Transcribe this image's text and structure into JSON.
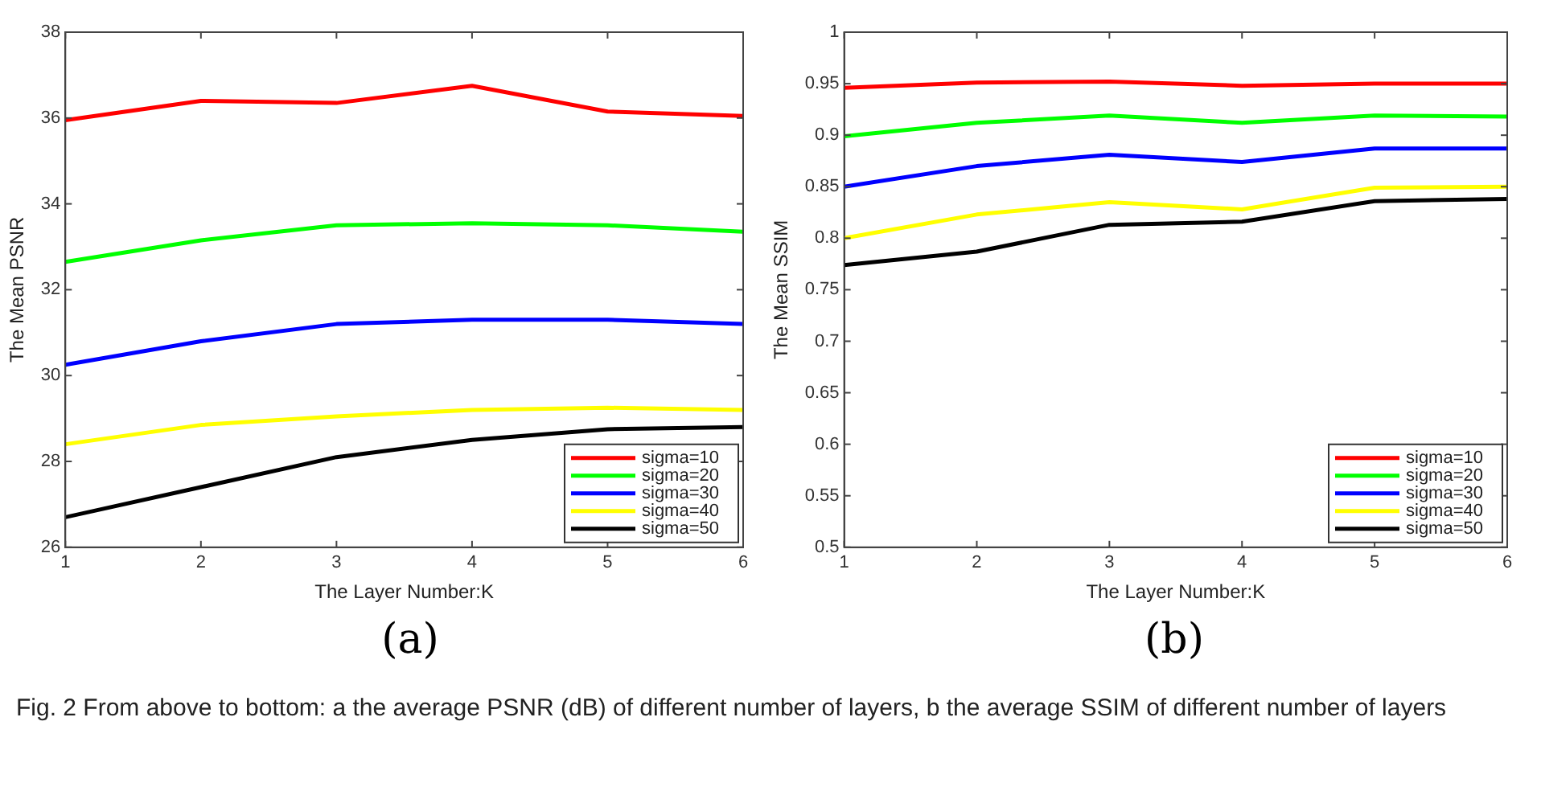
{
  "chart_data": [
    {
      "type": "line",
      "xlabel": "The Layer Number:K",
      "ylabel": "The Mean PSNR",
      "x": [
        1,
        2,
        3,
        4,
        5,
        6
      ],
      "xlim": [
        1,
        6
      ],
      "xticks": [
        1,
        2,
        3,
        4,
        5,
        6
      ],
      "ylim": [
        26,
        38
      ],
      "yticks": [
        26,
        28,
        30,
        32,
        34,
        36,
        38
      ],
      "grid": false,
      "legend": "bottom right",
      "marker": "none",
      "line_style": "solid",
      "annotations": [
        "(a)"
      ],
      "series": [
        {
          "name": "sigma=10",
          "color": "#ff0000",
          "values": [
            35.95,
            36.4,
            36.35,
            36.75,
            36.15,
            36.05
          ]
        },
        {
          "name": "sigma=20",
          "color": "#00ff00",
          "values": [
            32.65,
            33.15,
            33.5,
            33.55,
            33.5,
            33.35
          ]
        },
        {
          "name": "sigma=30",
          "color": "#0000ff",
          "values": [
            30.25,
            30.8,
            31.2,
            31.3,
            31.3,
            31.2
          ]
        },
        {
          "name": "sigma=40",
          "color": "#ffff00",
          "values": [
            28.4,
            28.85,
            29.05,
            29.2,
            29.25,
            29.2
          ]
        },
        {
          "name": "sigma=50",
          "color": "#000000",
          "values": [
            26.7,
            27.4,
            28.1,
            28.5,
            28.75,
            28.8
          ]
        }
      ]
    },
    {
      "type": "line",
      "xlabel": "The Layer Number:K",
      "ylabel": "The Mean SSIM",
      "x": [
        1,
        2,
        3,
        4,
        5,
        6
      ],
      "xlim": [
        1,
        6
      ],
      "xticks": [
        1,
        2,
        3,
        4,
        5,
        6
      ],
      "ylim": [
        0.5,
        1
      ],
      "yticks": [
        0.5,
        0.55,
        0.6,
        0.65,
        0.7,
        0.75,
        0.8,
        0.85,
        0.9,
        0.95,
        1
      ],
      "grid": false,
      "legend": "bottom right",
      "marker": "none",
      "line_style": "solid",
      "annotations": [
        "(b)",
        "Fig. 2  From above to bottom: a the average PSNR (dB) of different number of layers, b the average SSIM of different number of layers"
      ],
      "series": [
        {
          "name": "sigma=10",
          "color": "#ff0000",
          "values": [
            0.946,
            0.951,
            0.952,
            0.948,
            0.95,
            0.95
          ]
        },
        {
          "name": "sigma=20",
          "color": "#00ff00",
          "values": [
            0.899,
            0.912,
            0.919,
            0.912,
            0.919,
            0.918
          ]
        },
        {
          "name": "sigma=30",
          "color": "#0000ff",
          "values": [
            0.85,
            0.87,
            0.881,
            0.874,
            0.887,
            0.887
          ]
        },
        {
          "name": "sigma=40",
          "color": "#ffff00",
          "values": [
            0.8,
            0.823,
            0.835,
            0.828,
            0.849,
            0.85
          ]
        },
        {
          "name": "sigma=50",
          "color": "#000000",
          "values": [
            0.774,
            0.787,
            0.813,
            0.816,
            0.836,
            0.838
          ]
        }
      ]
    }
  ]
}
